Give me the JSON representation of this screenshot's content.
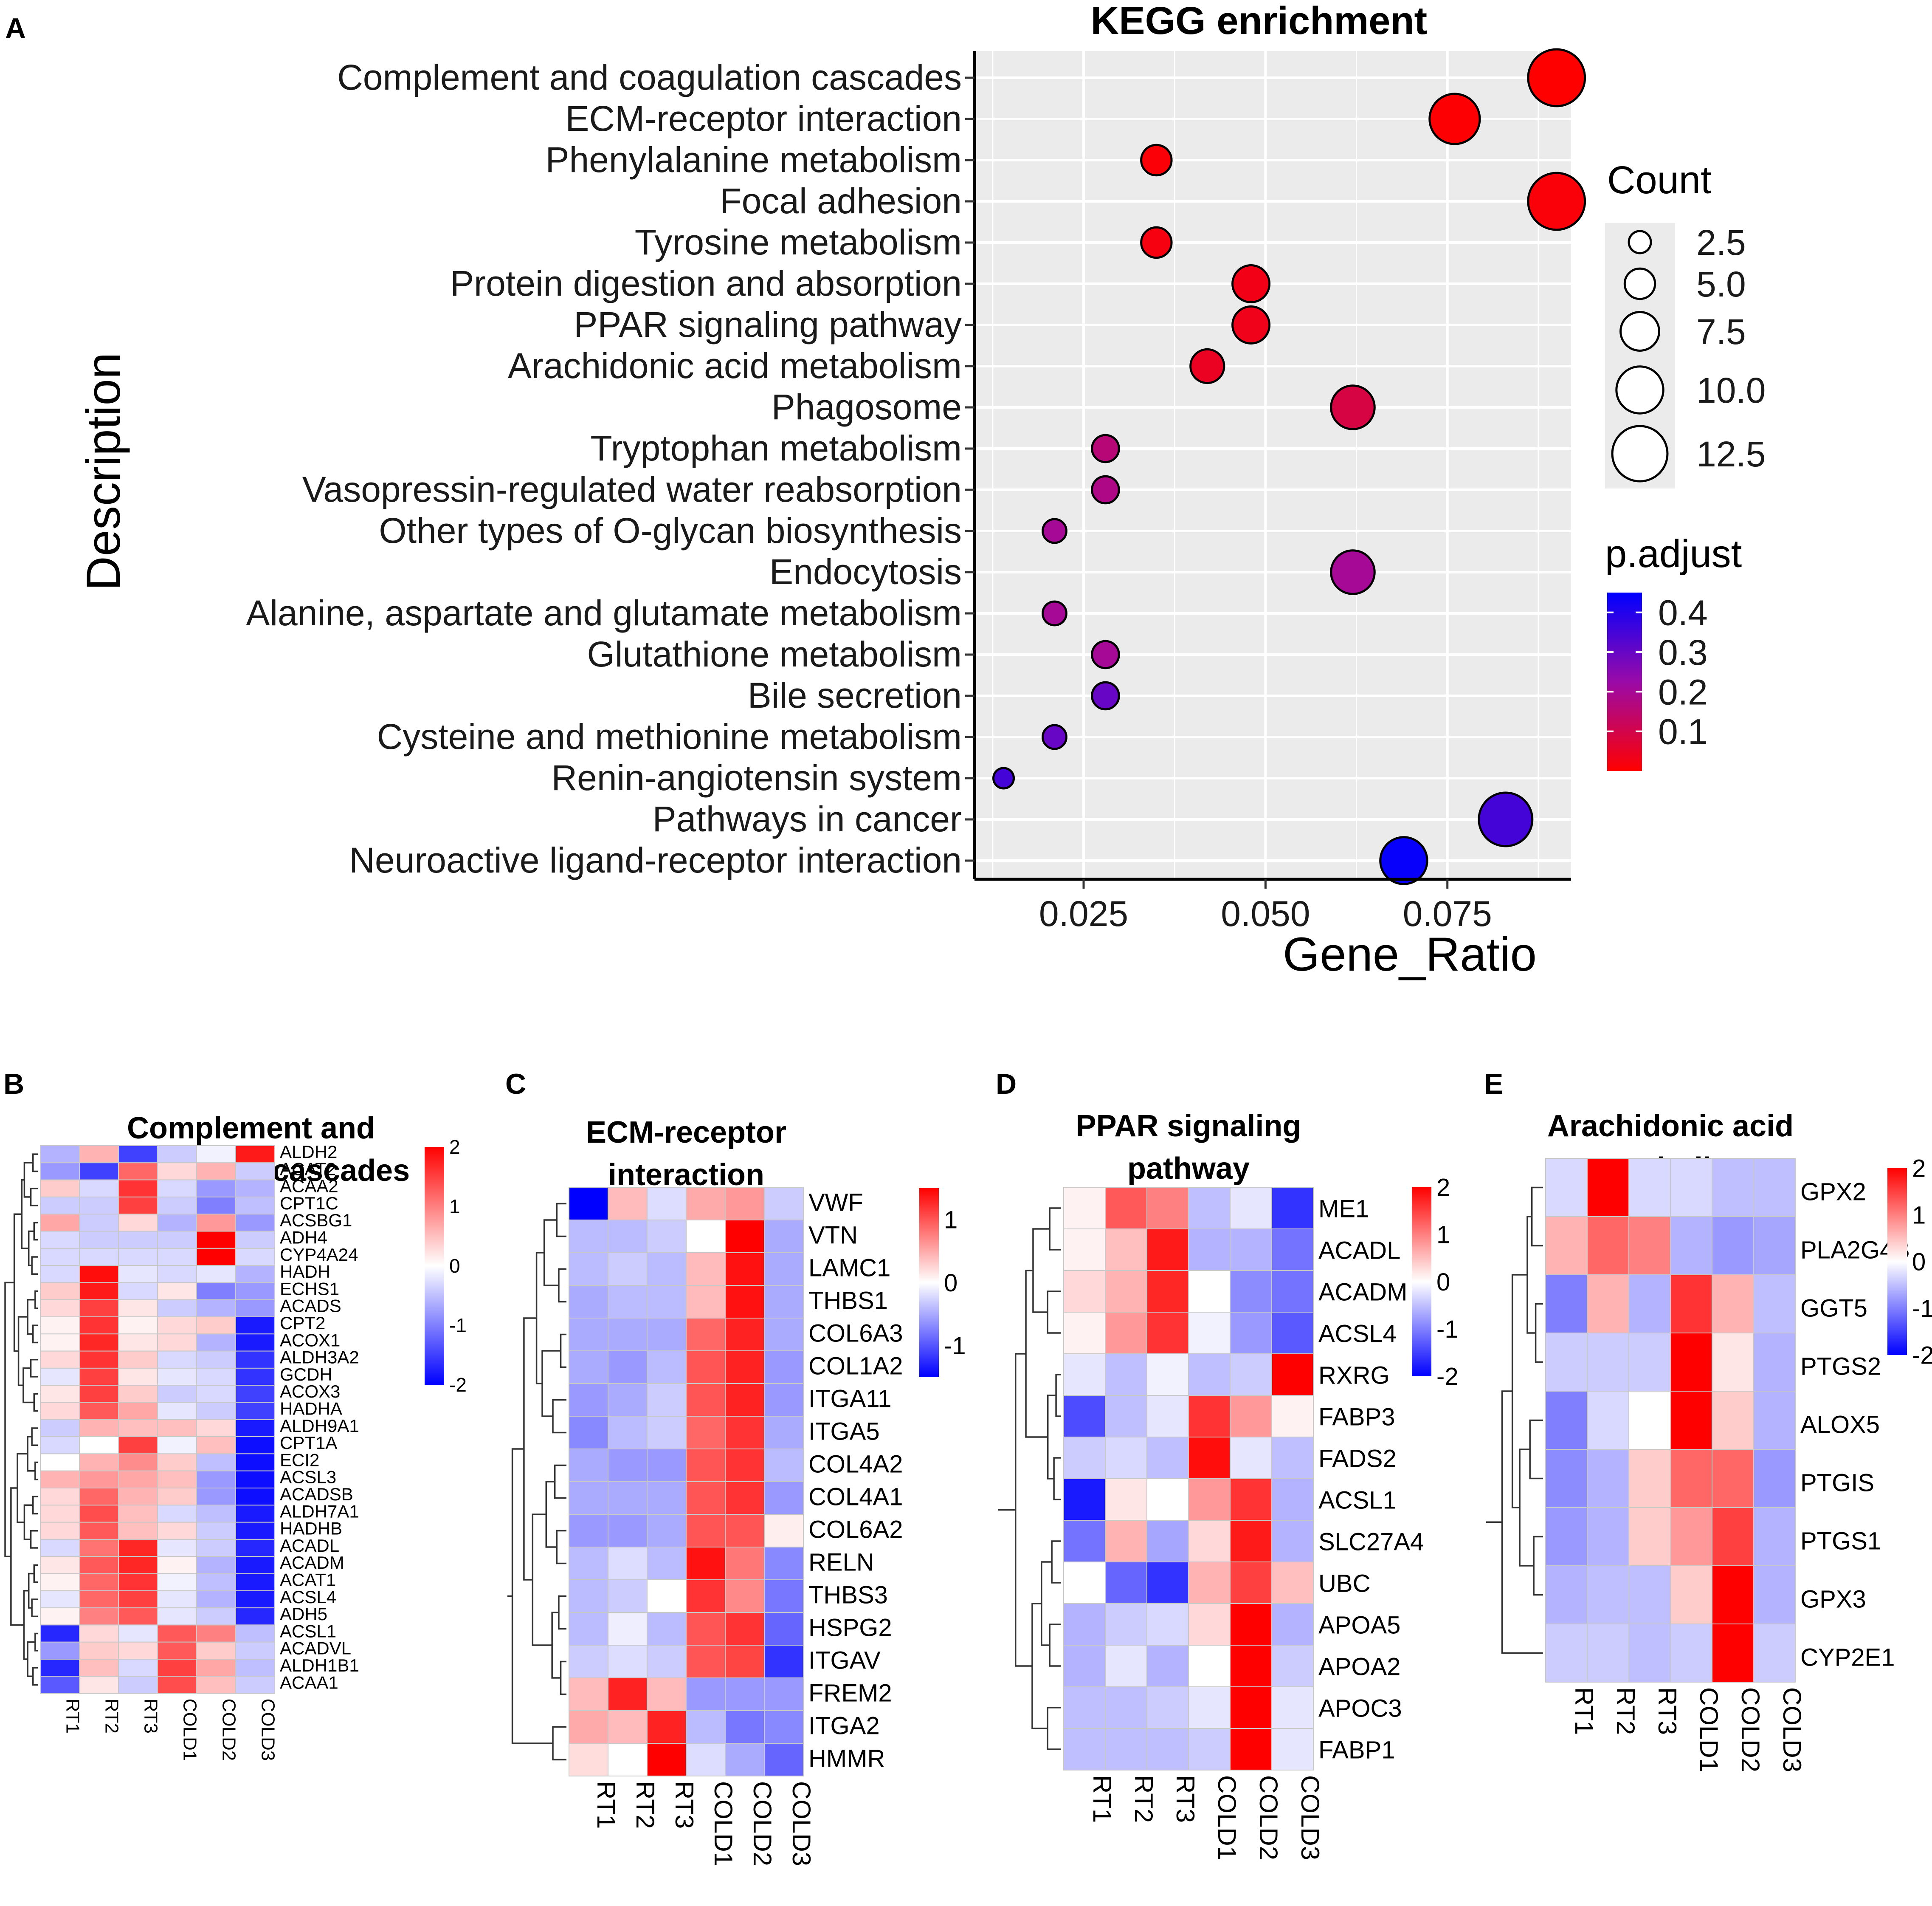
{
  "panel_labels": [
    "A",
    "B",
    "C",
    "D",
    "E"
  ],
  "chart_data": [
    {
      "type": "scatter",
      "title": "KEGG enrichment",
      "xlabel": "Gene_Ratio",
      "ylabel": "Description",
      "xlim": [
        0.01,
        0.092
      ],
      "xticks": [
        0.025,
        0.05,
        0.075
      ],
      "xtick_labels": [
        "0.025",
        "0.050",
        "0.075"
      ],
      "grid": true,
      "size_legend": {
        "title": "Count",
        "values": [
          2.5,
          5.0,
          7.5,
          10.0,
          12.5
        ],
        "labels": [
          "2.5",
          "5.0",
          "7.5",
          "10.0",
          "12.5"
        ]
      },
      "color_legend": {
        "title": "p.adjust",
        "range": [
          0.0,
          0.45
        ],
        "ticks": [
          0.4,
          0.3,
          0.2,
          0.1
        ],
        "tick_labels": [
          "0.4",
          "0.3",
          "0.2",
          "0.1"
        ],
        "low_color": "#ff0000",
        "high_color": "#0000ff"
      },
      "points": [
        {
          "description": "Complement and coagulation cascades",
          "gene_ratio": 0.09,
          "count": 13,
          "p_adjust": 0.001
        },
        {
          "description": "ECM-receptor interaction",
          "gene_ratio": 0.076,
          "count": 11,
          "p_adjust": 0.005
        },
        {
          "description": "Phenylalanine metabolism",
          "gene_ratio": 0.035,
          "count": 5,
          "p_adjust": 0.01
        },
        {
          "description": "Focal adhesion",
          "gene_ratio": 0.09,
          "count": 13,
          "p_adjust": 0.012
        },
        {
          "description": "Tyrosine metabolism",
          "gene_ratio": 0.035,
          "count": 5,
          "p_adjust": 0.02
        },
        {
          "description": "Protein digestion and absorption",
          "gene_ratio": 0.048,
          "count": 7,
          "p_adjust": 0.03
        },
        {
          "description": "PPAR signaling pathway",
          "gene_ratio": 0.048,
          "count": 7,
          "p_adjust": 0.035
        },
        {
          "description": "Arachidonic acid metabolism",
          "gene_ratio": 0.042,
          "count": 6,
          "p_adjust": 0.045
        },
        {
          "description": "Phagosome",
          "gene_ratio": 0.062,
          "count": 9,
          "p_adjust": 0.09
        },
        {
          "description": "Tryptophan metabolism",
          "gene_ratio": 0.028,
          "count": 4,
          "p_adjust": 0.16
        },
        {
          "description": "Vasopressin-regulated water reabsorption",
          "gene_ratio": 0.028,
          "count": 4,
          "p_adjust": 0.18
        },
        {
          "description": "Other types of O-glycan biosynthesis",
          "gene_ratio": 0.021,
          "count": 3,
          "p_adjust": 0.2
        },
        {
          "description": "Endocytosis",
          "gene_ratio": 0.062,
          "count": 9,
          "p_adjust": 0.2
        },
        {
          "description": "Alanine, aspartate and glutamate metabolism",
          "gene_ratio": 0.021,
          "count": 3,
          "p_adjust": 0.2
        },
        {
          "description": "Glutathione metabolism",
          "gene_ratio": 0.028,
          "count": 4,
          "p_adjust": 0.2
        },
        {
          "description": "Bile secretion",
          "gene_ratio": 0.028,
          "count": 4,
          "p_adjust": 0.3
        },
        {
          "description": "Cysteine and methionine metabolism",
          "gene_ratio": 0.021,
          "count": 3,
          "p_adjust": 0.3
        },
        {
          "description": "Renin-angiotensin system",
          "gene_ratio": 0.014,
          "count": 2,
          "p_adjust": 0.35
        },
        {
          "description": "Pathways in cancer",
          "gene_ratio": 0.083,
          "count": 12,
          "p_adjust": 0.35
        },
        {
          "description": "Neuroactive ligand-receptor interaction",
          "gene_ratio": 0.069,
          "count": 10,
          "p_adjust": 0.44
        }
      ]
    },
    {
      "type": "heatmap",
      "panel": "B",
      "title_lines": [
        "Complement and",
        "coagulation cascades"
      ],
      "columns": [
        "RT1",
        "RT2",
        "RT3",
        "COLD1",
        "COLD2",
        "COLD3"
      ],
      "legend": {
        "ticks": [
          2,
          1,
          0,
          -1,
          -2
        ],
        "tick_labels": [
          "2",
          "1",
          "0",
          "-1",
          "-2"
        ],
        "range": [
          -2,
          2
        ]
      },
      "rows": [
        "ALDH2",
        "ACAT2",
        "ACAA2",
        "CPT1C",
        "ACSBG1",
        "ADH4",
        "CYP4A24",
        "HADH",
        "ECHS1",
        "ACADS",
        "CPT2",
        "ACOX1",
        "ALDH3A2",
        "GCDH",
        "ACOX3",
        "HADHA",
        "ALDH9A1",
        "CPT1A",
        "ECI2",
        "ACSL3",
        "ACADSB",
        "ALDH7A1",
        "HADHB",
        "ACADL",
        "ACADM",
        "ACAT1",
        "ACSL4",
        "ADH5",
        "ACSL1",
        "ACADVL",
        "ALDH1B1",
        "ACAA1"
      ],
      "values": [
        [
          -0.6,
          0.6,
          -1.5,
          -0.4,
          -0.1,
          1.8
        ],
        [
          -0.8,
          -1.5,
          1.2,
          0.3,
          0.6,
          -0.4
        ],
        [
          0.4,
          -0.3,
          1.6,
          -0.3,
          -0.8,
          -0.6
        ],
        [
          -0.4,
          -0.4,
          1.5,
          -0.4,
          -1.0,
          -0.5
        ],
        [
          0.7,
          -0.4,
          0.3,
          -0.6,
          0.8,
          -0.8
        ],
        [
          -0.3,
          -0.4,
          -0.4,
          -0.4,
          2.0,
          -0.4
        ],
        [
          -0.3,
          -0.3,
          -0.3,
          -0.3,
          2.0,
          -0.3
        ],
        [
          -0.3,
          1.9,
          -0.2,
          -0.3,
          -0.2,
          -0.6
        ],
        [
          0.4,
          1.8,
          -0.3,
          0.2,
          -1.0,
          -0.8
        ],
        [
          0.3,
          1.5,
          0.2,
          -0.4,
          -0.6,
          -0.8
        ],
        [
          0.1,
          1.6,
          0.1,
          0.3,
          0.4,
          -1.8
        ],
        [
          0.1,
          1.7,
          0.2,
          0.3,
          -0.6,
          -1.8
        ],
        [
          0.3,
          1.6,
          0.4,
          -0.3,
          -0.4,
          -1.6
        ],
        [
          -0.2,
          1.5,
          0.2,
          -0.2,
          -0.3,
          -1.6
        ],
        [
          0.2,
          1.5,
          0.4,
          -0.4,
          -0.3,
          -1.5
        ],
        [
          0.3,
          1.3,
          0.7,
          -0.2,
          -0.4,
          -1.5
        ],
        [
          -0.4,
          0.6,
          0.5,
          0.5,
          0.3,
          -1.8
        ],
        [
          -0.3,
          0.0,
          1.5,
          -0.1,
          0.5,
          -1.9
        ],
        [
          0.0,
          0.6,
          0.9,
          0.4,
          -0.5,
          -1.9
        ],
        [
          0.6,
          0.8,
          0.7,
          0.5,
          -0.8,
          -1.9
        ],
        [
          0.3,
          1.2,
          0.6,
          0.4,
          -0.8,
          -1.9
        ],
        [
          0.3,
          1.4,
          0.5,
          -0.3,
          -0.5,
          -1.8
        ],
        [
          0.3,
          1.3,
          0.5,
          0.3,
          -0.4,
          -1.8
        ],
        [
          -0.3,
          1.1,
          1.7,
          -0.2,
          -0.4,
          -1.7
        ],
        [
          0.2,
          1.3,
          1.7,
          0.1,
          -0.6,
          -1.8
        ],
        [
          0.1,
          1.2,
          1.6,
          -0.1,
          -0.5,
          -1.8
        ],
        [
          -0.2,
          1.2,
          1.5,
          -0.2,
          -0.6,
          -1.8
        ],
        [
          0.1,
          1.0,
          1.3,
          -0.2,
          -0.4,
          -1.7
        ],
        [
          -1.7,
          0.3,
          -0.2,
          1.3,
          1.0,
          -0.5
        ],
        [
          -0.8,
          0.4,
          0.3,
          1.3,
          0.4,
          -0.4
        ],
        [
          -1.7,
          0.5,
          -0.3,
          1.5,
          0.7,
          -0.5
        ],
        [
          -1.3,
          0.2,
          -0.4,
          1.4,
          0.5,
          -0.4
        ]
      ]
    },
    {
      "type": "heatmap",
      "panel": "C",
      "title_lines": [
        "ECM-receptor",
        "interaction"
      ],
      "columns": [
        "RT1",
        "RT2",
        "RT3",
        "COLD1",
        "COLD2",
        "COLD3"
      ],
      "legend": {
        "ticks": [
          1,
          0,
          -1
        ],
        "tick_labels": [
          "1",
          "0",
          "-1"
        ],
        "range": [
          -1.5,
          1.5
        ]
      },
      "rows": [
        "VWF",
        "VTN",
        "LAMC1",
        "THBS1",
        "COL6A3",
        "COL1A2",
        "ITGA11",
        "ITGA5",
        "COL4A2",
        "COL4A1",
        "COL6A2",
        "RELN",
        "THBS3",
        "HSPG2",
        "ITGAV",
        "FREM2",
        "ITGA2",
        "HMMR"
      ],
      "values": [
        [
          -1.5,
          0.4,
          -0.2,
          0.5,
          0.6,
          -0.3
        ],
        [
          -0.4,
          -0.4,
          -0.3,
          0.0,
          1.5,
          -0.5
        ],
        [
          -0.4,
          -0.3,
          -0.4,
          0.4,
          1.4,
          -0.5
        ],
        [
          -0.5,
          -0.4,
          -0.4,
          0.4,
          1.4,
          -0.5
        ],
        [
          -0.5,
          -0.5,
          -0.5,
          0.9,
          1.3,
          -0.5
        ],
        [
          -0.5,
          -0.6,
          -0.4,
          1.0,
          1.3,
          -0.6
        ],
        [
          -0.6,
          -0.5,
          -0.3,
          1.0,
          1.3,
          -0.6
        ],
        [
          -0.7,
          -0.4,
          -0.3,
          0.9,
          1.2,
          -0.5
        ],
        [
          -0.5,
          -0.6,
          -0.6,
          1.0,
          1.2,
          -0.4
        ],
        [
          -0.5,
          -0.5,
          -0.5,
          1.0,
          1.2,
          -0.6
        ],
        [
          -0.6,
          -0.6,
          -0.5,
          1.0,
          1.0,
          0.1
        ],
        [
          -0.4,
          -0.2,
          -0.4,
          1.4,
          0.8,
          -0.7
        ],
        [
          -0.4,
          -0.3,
          0.0,
          1.2,
          0.7,
          -0.8
        ],
        [
          -0.4,
          -0.1,
          -0.4,
          1.0,
          1.2,
          -0.9
        ],
        [
          -0.3,
          -0.2,
          -0.3,
          1.0,
          1.1,
          -1.2
        ],
        [
          0.4,
          1.3,
          0.4,
          -0.6,
          -0.6,
          -0.6
        ],
        [
          0.5,
          0.4,
          1.3,
          -0.4,
          -0.8,
          -0.7
        ],
        [
          0.2,
          0.0,
          1.5,
          -0.2,
          -0.5,
          -0.9
        ]
      ]
    },
    {
      "type": "heatmap",
      "panel": "D",
      "title_lines": [
        "PPAR signaling",
        "pathway"
      ],
      "columns": [
        "RT1",
        "RT2",
        "RT3",
        "COLD1",
        "COLD2",
        "COLD3"
      ],
      "legend": {
        "ticks": [
          2,
          1,
          0,
          -1,
          -2
        ],
        "tick_labels": [
          "2",
          "1",
          "0",
          "-1",
          "-2"
        ],
        "range": [
          -2,
          2
        ]
      },
      "rows": [
        "ME1",
        "ACADL",
        "ACADM",
        "ACSL4",
        "RXRG",
        "FABP3",
        "FADS2",
        "ACSL1",
        "SLC27A4",
        "UBC",
        "APOA5",
        "APOA2",
        "APOC3",
        "FABP1"
      ],
      "values": [
        [
          0.1,
          1.3,
          1.0,
          -0.5,
          -0.2,
          -1.6
        ],
        [
          0.1,
          0.5,
          1.8,
          -0.6,
          -0.6,
          -1.1
        ],
        [
          0.3,
          0.6,
          1.7,
          0.0,
          -0.9,
          -1.1
        ],
        [
          0.1,
          0.8,
          1.6,
          -0.1,
          -0.8,
          -1.3
        ],
        [
          -0.2,
          -0.5,
          -0.1,
          -0.5,
          -0.4,
          2.0
        ],
        [
          -1.4,
          -0.5,
          -0.2,
          1.6,
          0.8,
          0.1
        ],
        [
          -0.4,
          -0.3,
          -0.5,
          1.9,
          -0.2,
          -0.5
        ],
        [
          -1.8,
          0.2,
          0.0,
          0.8,
          1.6,
          -0.6
        ],
        [
          -1.1,
          0.6,
          -0.7,
          0.3,
          1.8,
          -0.6
        ],
        [
          0.0,
          -1.2,
          -1.6,
          0.6,
          1.5,
          0.5
        ],
        [
          -0.6,
          -0.4,
          -0.3,
          0.3,
          2.0,
          -0.6
        ],
        [
          -0.6,
          -0.2,
          -0.6,
          0.0,
          2.0,
          -0.4
        ],
        [
          -0.5,
          -0.5,
          -0.4,
          -0.2,
          2.0,
          -0.2
        ],
        [
          -0.5,
          -0.5,
          -0.5,
          -0.4,
          2.0,
          -0.2
        ]
      ]
    },
    {
      "type": "heatmap",
      "panel": "E",
      "title_lines": [
        "Arachidonic acid",
        "metabolism"
      ],
      "columns": [
        "RT1",
        "RT2",
        "RT3",
        "COLD1",
        "COLD2",
        "COLD3"
      ],
      "legend": {
        "ticks": [
          2,
          1,
          0,
          -1,
          -2
        ],
        "tick_labels": [
          "2",
          "1",
          "0",
          "-1",
          "-2"
        ],
        "range": [
          -2,
          2
        ]
      },
      "rows": [
        "GPX2",
        "PLA2G4B",
        "GGT5",
        "PTGS2",
        "ALOX5",
        "PTGIS",
        "PTGS1",
        "GPX3",
        "CYP2E1"
      ],
      "values": [
        [
          -0.3,
          2.0,
          -0.3,
          -0.3,
          -0.5,
          -0.5
        ],
        [
          0.6,
          1.2,
          1.0,
          -0.6,
          -0.8,
          -0.7
        ],
        [
          -1.0,
          0.6,
          -0.6,
          1.6,
          0.6,
          -0.5
        ],
        [
          -0.4,
          -0.4,
          -0.4,
          2.0,
          0.2,
          -0.6
        ],
        [
          -1.0,
          -0.3,
          0.0,
          2.0,
          0.4,
          -0.6
        ],
        [
          -0.9,
          -0.6,
          0.4,
          1.2,
          1.2,
          -0.8
        ],
        [
          -0.8,
          -0.6,
          0.4,
          0.8,
          1.5,
          -0.6
        ],
        [
          -0.6,
          -0.5,
          -0.5,
          0.4,
          2.0,
          -0.6
        ],
        [
          -0.4,
          -0.4,
          -0.5,
          -0.4,
          2.0,
          -0.4
        ]
      ]
    }
  ]
}
